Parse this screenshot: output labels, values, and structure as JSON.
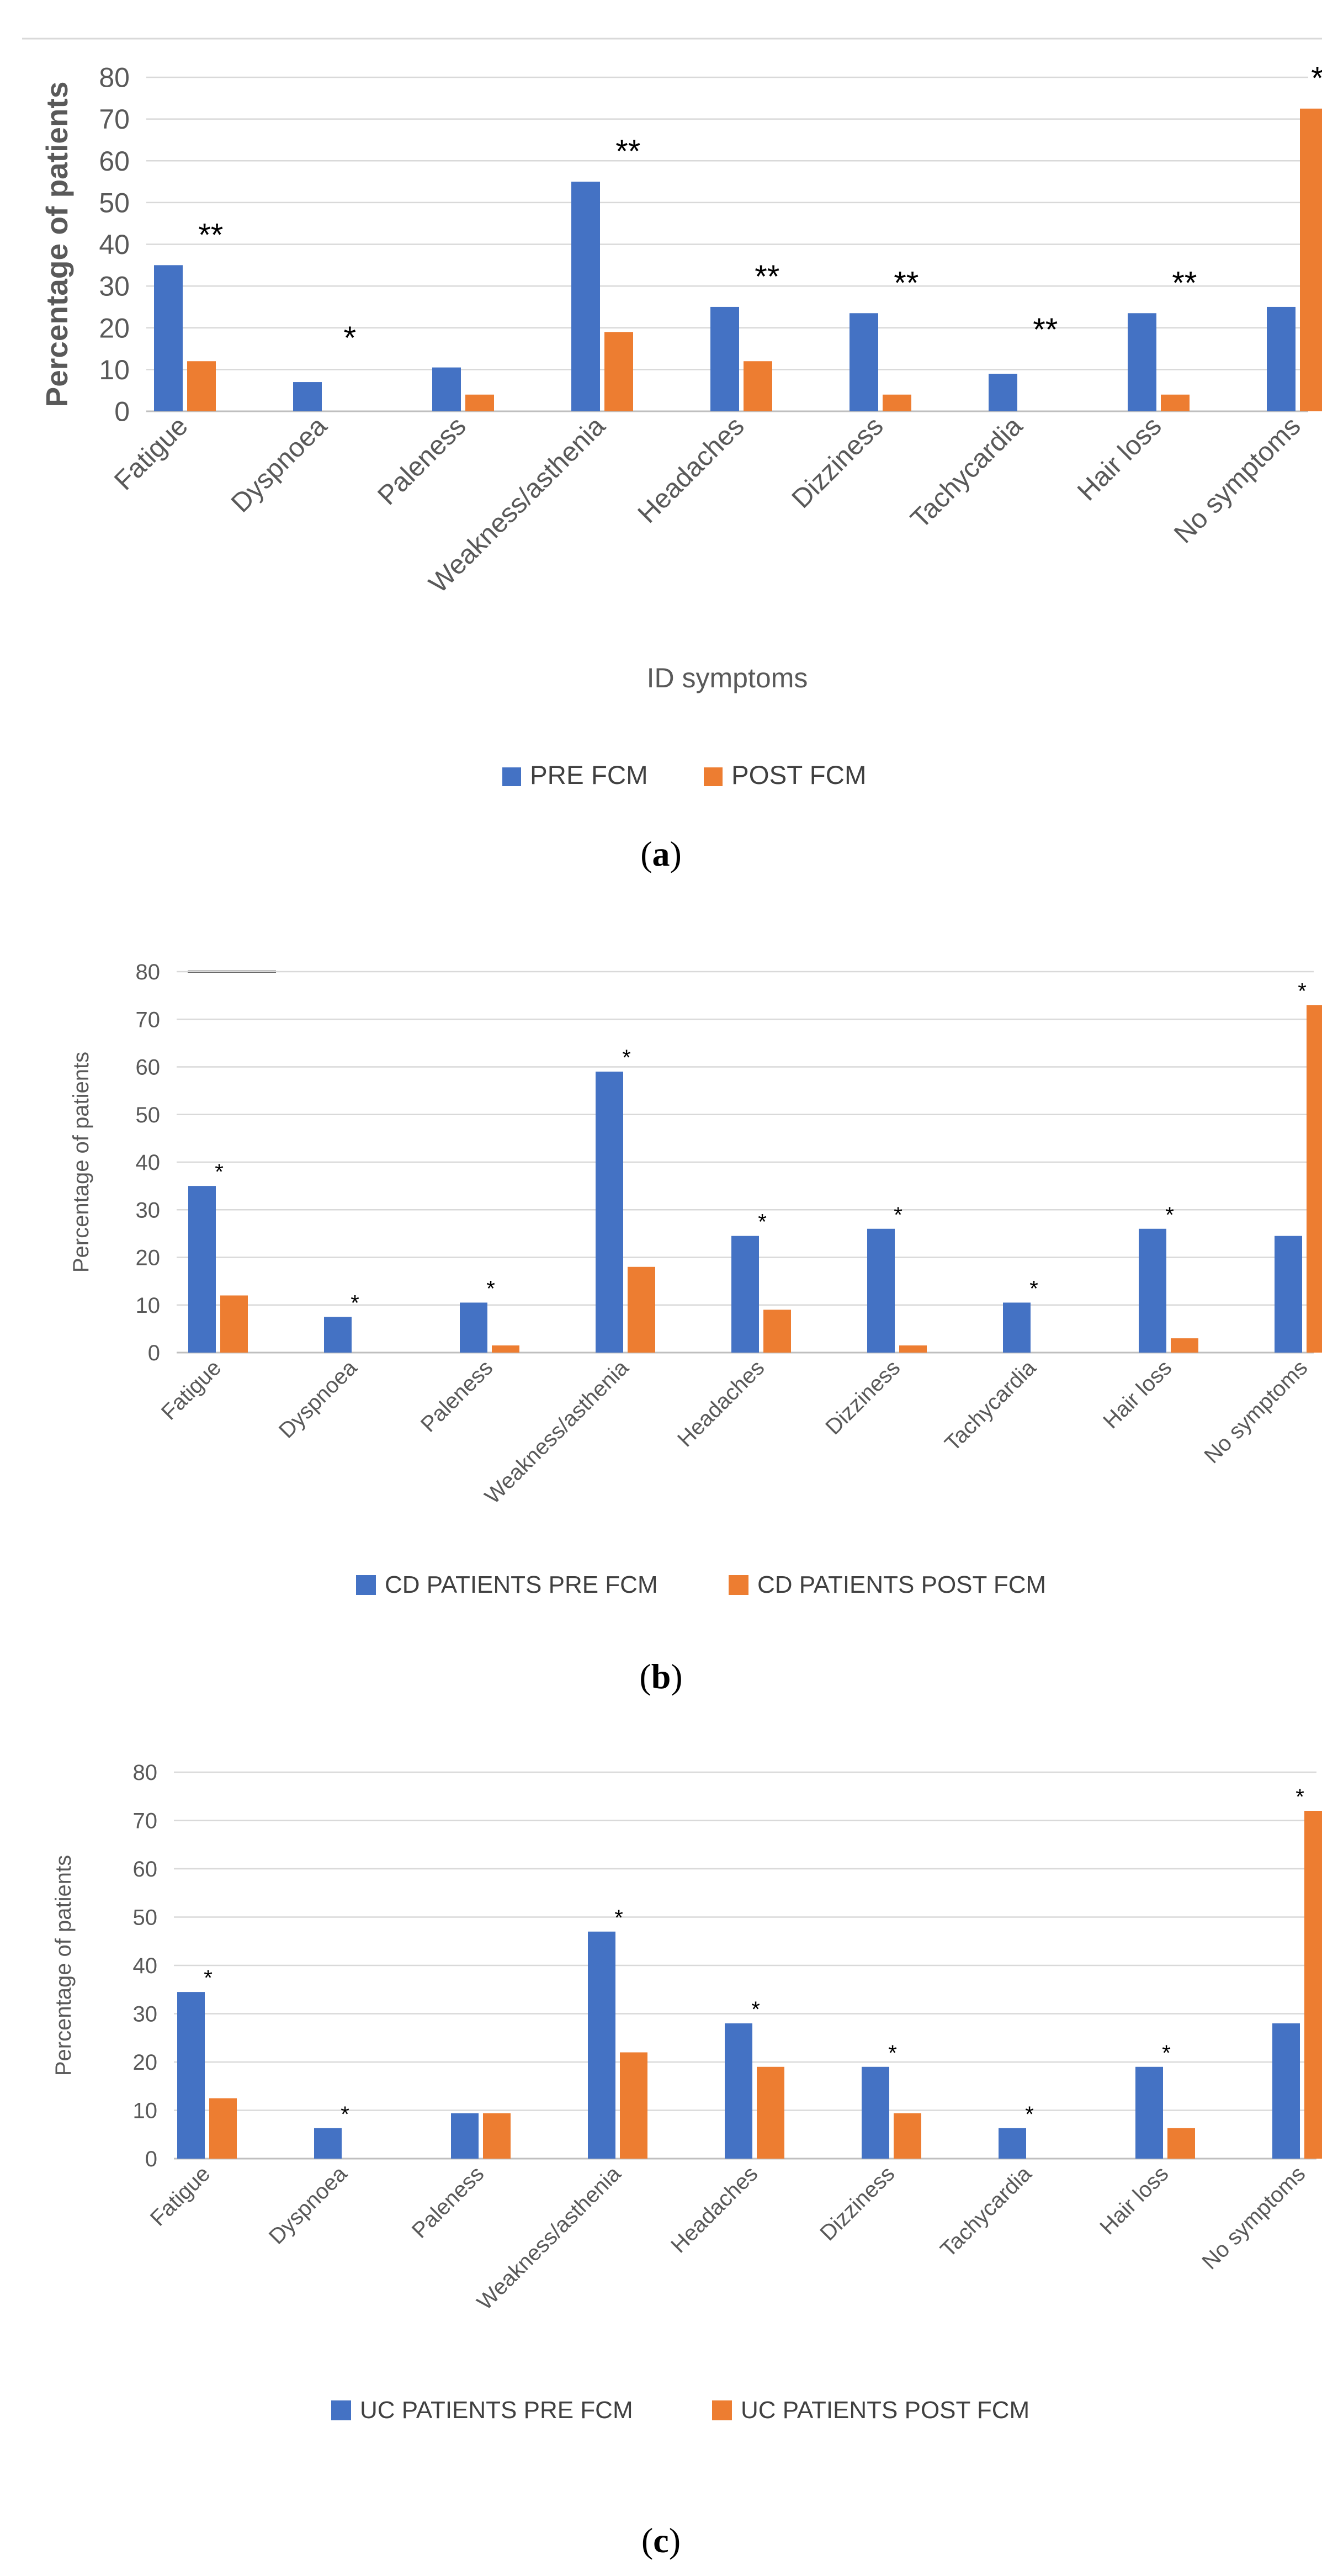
{
  "colors": {
    "pre": "#4472c4",
    "post": "#ed7d31"
  },
  "chart_data": [
    {
      "type": "bar",
      "panel": "a",
      "categories": [
        "Fatigue",
        "Dyspnoea",
        "Paleness",
        "Weakness/asthenia",
        "Headaches",
        "Dizziness",
        "Tachycardia",
        "Hair loss",
        "No symptoms"
      ],
      "series": [
        {
          "name": "PRE FCM",
          "values": [
            35,
            7,
            10.5,
            55,
            25,
            23.5,
            9,
            23.5,
            25
          ]
        },
        {
          "name": "POST FCM",
          "values": [
            12,
            0,
            4,
            19,
            12,
            4,
            0,
            4,
            72.5
          ]
        }
      ],
      "significance": [
        "**",
        "*",
        "",
        "**",
        "**",
        "**",
        "**",
        "**",
        "**"
      ],
      "title": "",
      "xlabel": "ID symptoms",
      "ylabel": "Percentage of patients",
      "ylim": [
        0,
        80
      ],
      "yticks": [
        "0",
        "10",
        "20",
        "30",
        "40",
        "50",
        "60",
        "70",
        "80"
      ],
      "legend": "bottom"
    },
    {
      "type": "bar",
      "panel": "b",
      "categories": [
        "Fatigue",
        "Dyspnoea",
        "Paleness",
        "Weakness/asthenia",
        "Headaches",
        "Dizziness",
        "Tachycardia",
        "Hair loss",
        "No symptoms"
      ],
      "series": [
        {
          "name": "CD PATIENTS PRE FCM",
          "values": [
            35,
            7.5,
            10.5,
            59,
            24.5,
            26,
            10.5,
            26,
            24.5
          ]
        },
        {
          "name": "CD PATIENTS POST FCM",
          "values": [
            12,
            0,
            1.5,
            18,
            9,
            1.5,
            0,
            3,
            73
          ]
        }
      ],
      "significance": [
        "*",
        "*",
        "*",
        "*",
        "*",
        "*",
        "*",
        "*",
        "*"
      ],
      "title": "",
      "xlabel": "",
      "ylabel": "Percentage of patients",
      "ylim": [
        0,
        80
      ],
      "yticks": [
        "0",
        "10",
        "20",
        "30",
        "40",
        "50",
        "60",
        "70",
        "80"
      ],
      "legend": "bottom"
    },
    {
      "type": "bar",
      "panel": "c",
      "categories": [
        "Fatigue",
        "Dyspnoea",
        "Paleness",
        "Weakness/asthenia",
        "Headaches",
        "Dizziness",
        "Tachycardia",
        "Hair loss",
        "No symptoms"
      ],
      "series": [
        {
          "name": "UC PATIENTS PRE FCM",
          "values": [
            34.5,
            6.3,
            9.4,
            47,
            28,
            19,
            6.3,
            19,
            28
          ]
        },
        {
          "name": "UC PATIENTS POST FCM",
          "values": [
            12.5,
            0,
            9.4,
            22,
            19,
            9.4,
            0,
            6.3,
            72
          ]
        }
      ],
      "significance": [
        "*",
        "*",
        "",
        "*",
        "*",
        "*",
        "*",
        "*",
        "*"
      ],
      "title": "",
      "xlabel": "",
      "ylabel": "Percentage of patients",
      "ylim": [
        0,
        80
      ],
      "yticks": [
        "0",
        "10",
        "20",
        "30",
        "40",
        "50",
        "60",
        "70",
        "80"
      ],
      "legend": "bottom"
    }
  ],
  "panel_labels": {
    "a": "(a)",
    "a_letter": "a",
    "b": "(b)",
    "b_letter": "b",
    "c": "(c)",
    "c_letter": "c"
  }
}
